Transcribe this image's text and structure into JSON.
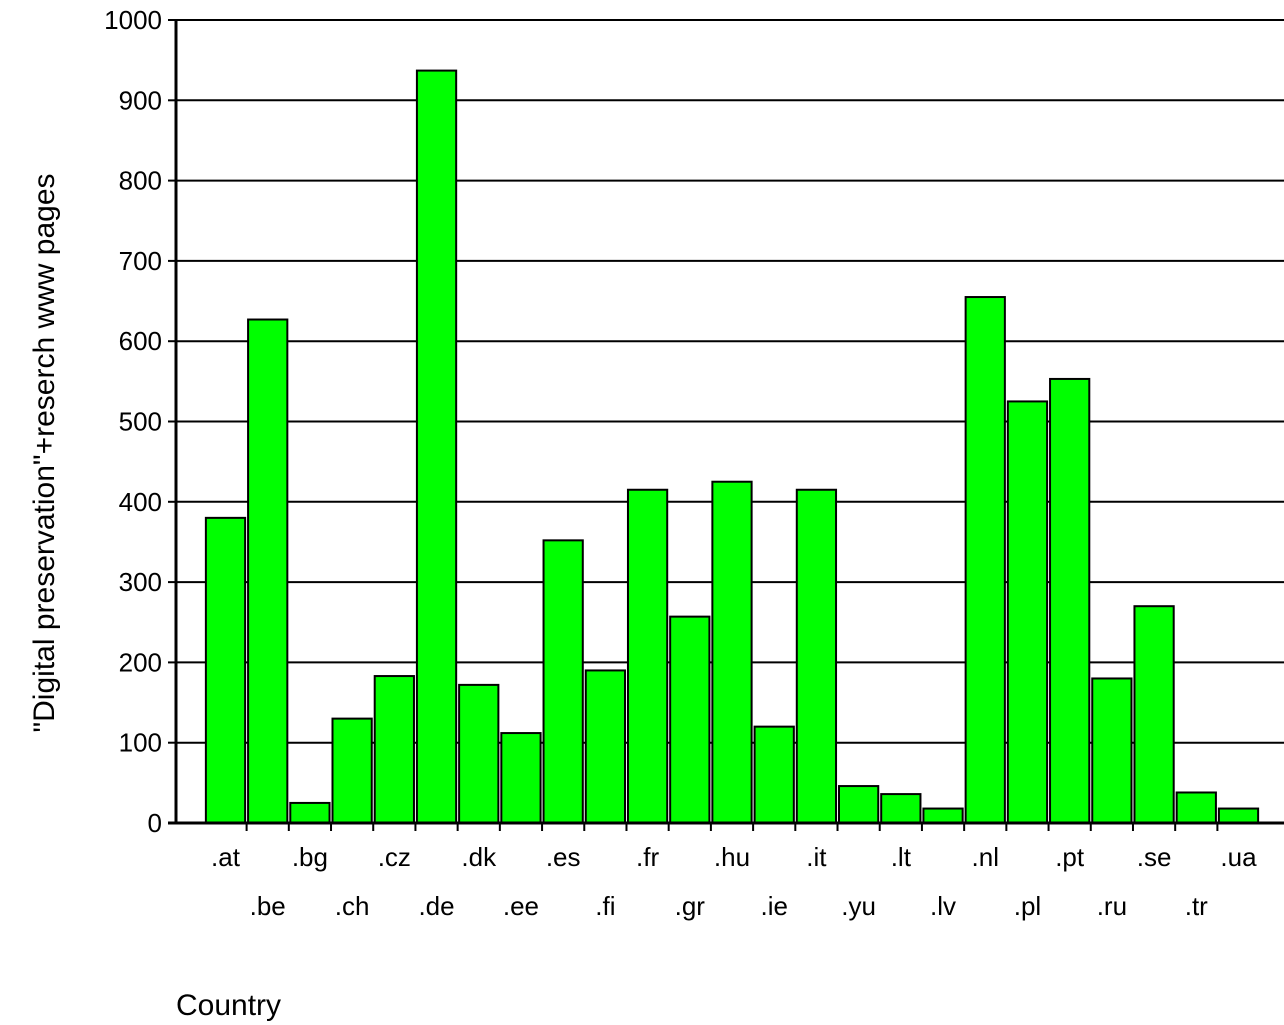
{
  "chart_data": {
    "type": "bar",
    "title": "",
    "xlabel": "Country",
    "ylabel": "\"Digital preservation\"+reserch www pages",
    "ylim": [
      0,
      1000
    ],
    "yticks": [
      0,
      100,
      200,
      300,
      400,
      500,
      600,
      700,
      800,
      900,
      1000
    ],
    "grid": true,
    "legend": "none",
    "categories": [
      ".at",
      ".be",
      ".bg",
      ".ch",
      ".cz",
      ".de",
      ".dk",
      ".ee",
      ".es",
      ".fi",
      ".fr",
      ".gr",
      ".hu",
      ".ie",
      ".it",
      ".yu",
      ".lt",
      ".lv",
      ".nl",
      ".pl",
      ".pt",
      ".ru",
      ".se",
      ".tr",
      ".ua"
    ],
    "values": [
      380,
      627,
      25,
      130,
      183,
      937,
      172,
      112,
      352,
      190,
      415,
      257,
      425,
      120,
      415,
      46,
      36,
      18,
      655,
      525,
      553,
      180,
      270,
      38,
      18
    ],
    "colors": {
      "bar": "#00ff00",
      "bar_stroke": "#000000",
      "grid": "#000000"
    }
  }
}
